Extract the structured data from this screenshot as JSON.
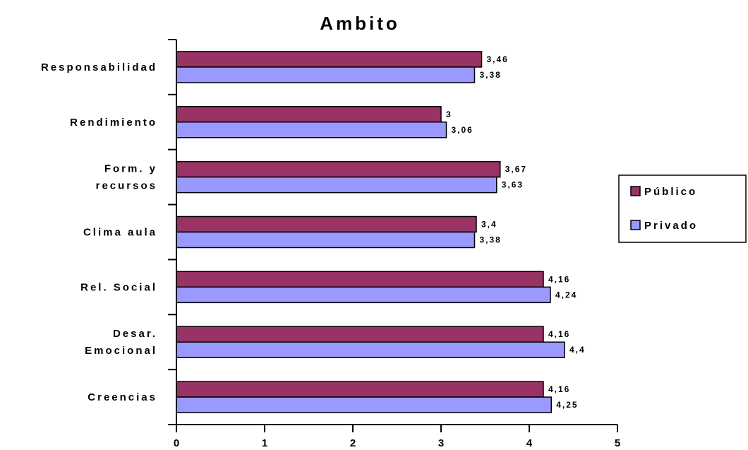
{
  "chart_data": {
    "type": "bar",
    "orientation": "horizontal",
    "title": "Ambito",
    "xlabel": "",
    "ylabel": "",
    "xlim": [
      0,
      5
    ],
    "x_ticks": [
      "0",
      "1",
      "2",
      "3",
      "4",
      "5"
    ],
    "grid": false,
    "legend_position": "right",
    "categories": [
      [
        "Responsabilidad"
      ],
      [
        "Rendimiento"
      ],
      [
        "Form. y",
        "recursos"
      ],
      [
        "Clima aula"
      ],
      [
        "Rel. Social"
      ],
      [
        "Desar.",
        "Emocional"
      ],
      [
        "Creencias"
      ]
    ],
    "series": [
      {
        "name": "Público",
        "color": "#993366",
        "values": [
          3.46,
          3,
          3.67,
          3.4,
          4.16,
          4.16,
          4.16
        ],
        "labels": [
          "3,46",
          "3",
          "3,67",
          "3,4",
          "4,16",
          "4,16",
          "4,16"
        ]
      },
      {
        "name": "Privado",
        "color": "#9999ff",
        "values": [
          3.38,
          3.06,
          3.63,
          3.38,
          4.24,
          4.4,
          4.25
        ],
        "labels": [
          "3,38",
          "3,06",
          "3,63",
          "3,38",
          "4,24",
          "4,4",
          "4,25"
        ]
      }
    ]
  }
}
